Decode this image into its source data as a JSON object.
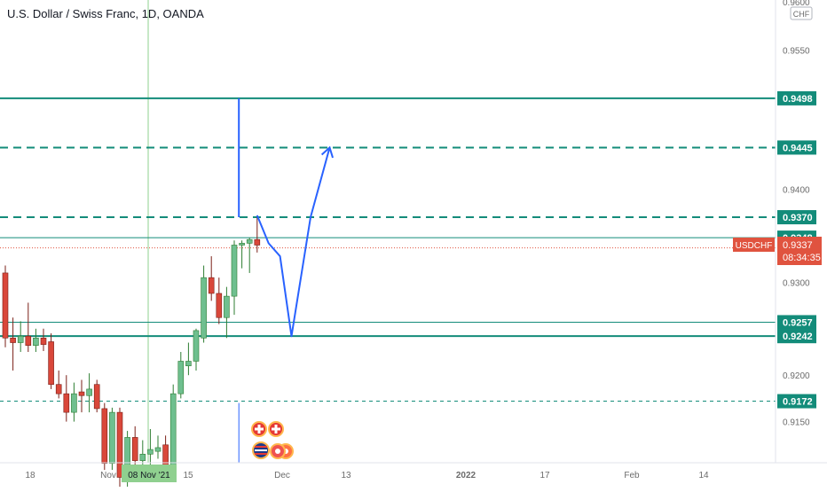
{
  "header": {
    "title": "U.S. Dollar / Swiss Franc, 1D, OANDA"
  },
  "currency_badge": "CHF",
  "chart_data": {
    "type": "candlestick",
    "symbol": "USDCHF",
    "ylim": [
      0.91,
      0.96
    ],
    "y_ticks": [
      "0.9150",
      "0.9200",
      "0.9300",
      "0.9400",
      "0.9550"
    ],
    "top_tick_partial": "0.9600",
    "x_ticks": [
      "18",
      "Nov",
      "08 Nov '21",
      "15",
      "Dec",
      "13",
      "2022",
      "17",
      "Feb",
      "14"
    ],
    "highlighted_date": "08 Nov '21",
    "last_price": {
      "symbol": "USDCHF",
      "price": "0.9337",
      "countdown": "08:34:35",
      "color": "#e0533f"
    },
    "horizontal_levels": [
      {
        "price": 0.9498,
        "label": "0.9498",
        "style": "solid"
      },
      {
        "price": 0.9445,
        "label": "0.9445",
        "style": "dashed"
      },
      {
        "price": 0.937,
        "label": "0.9370",
        "style": "dashed"
      },
      {
        "price": 0.9348,
        "label": "0.9348",
        "style": "solid-thin"
      },
      {
        "price": 0.9257,
        "label": "0.9257",
        "style": "solid-thin"
      },
      {
        "price": 0.9242,
        "label": "0.9242",
        "style": "solid"
      },
      {
        "price": 0.9172,
        "label": "0.9172",
        "style": "dotted"
      }
    ],
    "candles": [
      {
        "o": 0.931,
        "h": 0.9318,
        "l": 0.923,
        "c": 0.924
      },
      {
        "o": 0.924,
        "h": 0.9262,
        "l": 0.9205,
        "c": 0.9235
      },
      {
        "o": 0.9235,
        "h": 0.9258,
        "l": 0.9225,
        "c": 0.9242
      },
      {
        "o": 0.9242,
        "h": 0.9278,
        "l": 0.9225,
        "c": 0.9232
      },
      {
        "o": 0.9232,
        "h": 0.925,
        "l": 0.9225,
        "c": 0.924
      },
      {
        "o": 0.924,
        "h": 0.925,
        "l": 0.9226,
        "c": 0.9233
      },
      {
        "o": 0.9236,
        "h": 0.9245,
        "l": 0.9185,
        "c": 0.919
      },
      {
        "o": 0.919,
        "h": 0.9205,
        "l": 0.9175,
        "c": 0.918
      },
      {
        "o": 0.918,
        "h": 0.92,
        "l": 0.915,
        "c": 0.916
      },
      {
        "o": 0.916,
        "h": 0.9192,
        "l": 0.915,
        "c": 0.918
      },
      {
        "o": 0.9182,
        "h": 0.9195,
        "l": 0.916,
        "c": 0.9178
      },
      {
        "o": 0.9178,
        "h": 0.9202,
        "l": 0.916,
        "c": 0.9185
      },
      {
        "o": 0.919,
        "h": 0.9195,
        "l": 0.916,
        "c": 0.9164
      },
      {
        "o": 0.9164,
        "h": 0.917,
        "l": 0.9098,
        "c": 0.9105
      },
      {
        "o": 0.9105,
        "h": 0.9165,
        "l": 0.9098,
        "c": 0.916
      },
      {
        "o": 0.916,
        "h": 0.9165,
        "l": 0.908,
        "c": 0.909
      },
      {
        "o": 0.909,
        "h": 0.914,
        "l": 0.908,
        "c": 0.9133
      },
      {
        "o": 0.9133,
        "h": 0.9145,
        "l": 0.909,
        "c": 0.9108
      },
      {
        "o": 0.9108,
        "h": 0.913,
        "l": 0.9098,
        "c": 0.9115
      },
      {
        "o": 0.9115,
        "h": 0.9142,
        "l": 0.9102,
        "c": 0.912
      },
      {
        "o": 0.9118,
        "h": 0.9135,
        "l": 0.911,
        "c": 0.9122
      },
      {
        "o": 0.9125,
        "h": 0.9135,
        "l": 0.9088,
        "c": 0.9095
      },
      {
        "o": 0.9095,
        "h": 0.919,
        "l": 0.909,
        "c": 0.918
      },
      {
        "o": 0.918,
        "h": 0.9225,
        "l": 0.9175,
        "c": 0.9215
      },
      {
        "o": 0.921,
        "h": 0.9235,
        "l": 0.92,
        "c": 0.9215
      },
      {
        "o": 0.9215,
        "h": 0.925,
        "l": 0.9205,
        "c": 0.9248
      },
      {
        "o": 0.924,
        "h": 0.9318,
        "l": 0.9235,
        "c": 0.9305
      },
      {
        "o": 0.9305,
        "h": 0.9328,
        "l": 0.928,
        "c": 0.9288
      },
      {
        "o": 0.9288,
        "h": 0.9305,
        "l": 0.9255,
        "c": 0.9262
      },
      {
        "o": 0.9262,
        "h": 0.9295,
        "l": 0.924,
        "c": 0.9285
      },
      {
        "o": 0.9285,
        "h": 0.9345,
        "l": 0.9265,
        "c": 0.934
      },
      {
        "o": 0.934,
        "h": 0.9345,
        "l": 0.9315,
        "c": 0.9342
      },
      {
        "o": 0.9342,
        "h": 0.9348,
        "l": 0.931,
        "c": 0.9346
      },
      {
        "o": 0.9346,
        "h": 0.9372,
        "l": 0.9332,
        "c": 0.934
      }
    ],
    "drawings": {
      "projection_path": [
        {
          "bar": 33,
          "price": 0.9372
        },
        {
          "bar": 34.5,
          "price": 0.9342
        },
        {
          "bar": 36,
          "price": 0.9328
        },
        {
          "bar": 37.5,
          "price": 0.9242
        },
        {
          "bar": 40,
          "price": 0.937
        },
        {
          "bar": 42.5,
          "price": 0.9445
        }
      ],
      "measure_line": {
        "bar": 32,
        "price_top": 0.9498,
        "price_bottom": 0.937
      },
      "date_marker": {
        "bar": 32,
        "price_top": 0.917,
        "price_bottom": 0.9095
      }
    }
  },
  "event_icons": [
    "swiss-flag-icon",
    "swiss-flag-icon",
    "us-flag-icon",
    "event-badge-icon",
    "event-badge-icon"
  ],
  "colors": {
    "up": "#26a69a",
    "up_fill": "#6fbf8f",
    "down": "#d9473a",
    "level": "#138c7a",
    "projection": "#2962ff",
    "crosshair": "#7ecb7e",
    "axis_text": "#6b6b6b"
  }
}
